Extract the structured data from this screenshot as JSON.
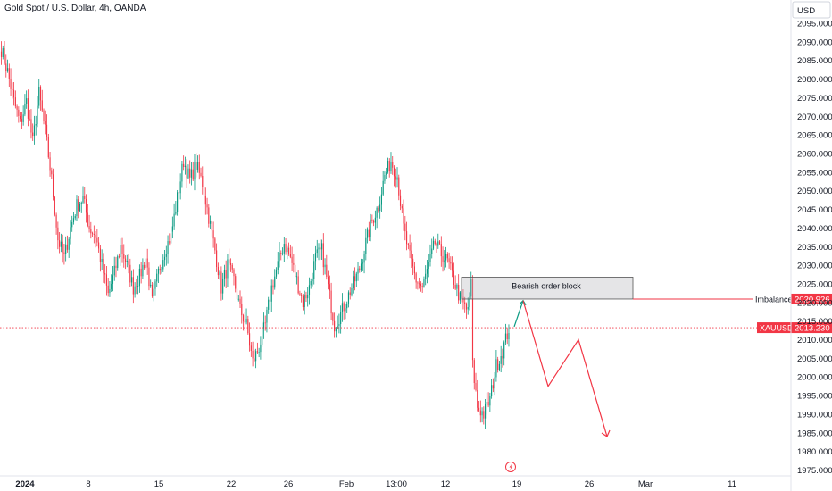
{
  "header": {
    "title": "Gold Spot / U.S. Dollar, 4h, OANDA"
  },
  "chart_data": {
    "type": "candlestick",
    "symbol": "XAUUSD",
    "currency_label": "USD",
    "y_ticks": [
      "2095.000",
      "2090.000",
      "2085.000",
      "2080.000",
      "2075.000",
      "2070.000",
      "2065.000",
      "2060.000",
      "2055.000",
      "2050.000",
      "2045.000",
      "2040.000",
      "2035.000",
      "2030.000",
      "2025.000",
      "2020.000",
      "2015.000",
      "2010.000",
      "2005.000",
      "2000.000",
      "1995.000",
      "1990.000",
      "1985.000",
      "1980.000",
      "1975.000"
    ],
    "ylim": [
      1974,
      2098
    ],
    "x_ticks": [
      {
        "label": "2024",
        "bold": true
      },
      {
        "label": "8"
      },
      {
        "label": "15"
      },
      {
        "label": "22"
      },
      {
        "label": "26"
      },
      {
        "label": "Feb"
      },
      {
        "label": "13:00"
      },
      {
        "label": "12"
      },
      {
        "label": "19"
      },
      {
        "label": "26"
      },
      {
        "label": "Mar"
      },
      {
        "label": "11"
      }
    ],
    "bull_color": "#089981",
    "bear_color": "#f23645",
    "anchors": [
      [
        0,
        2088
      ],
      [
        4,
        2082
      ],
      [
        8,
        2074
      ],
      [
        12,
        2068
      ],
      [
        16,
        2074
      ],
      [
        20,
        2063
      ],
      [
        24,
        2076
      ],
      [
        28,
        2066
      ],
      [
        32,
        2053
      ],
      [
        36,
        2037
      ],
      [
        40,
        2032
      ],
      [
        44,
        2040
      ],
      [
        48,
        2046
      ],
      [
        52,
        2048
      ],
      [
        56,
        2040
      ],
      [
        60,
        2038
      ],
      [
        64,
        2030
      ],
      [
        68,
        2022
      ],
      [
        72,
        2028
      ],
      [
        76,
        2035
      ],
      [
        80,
        2030
      ],
      [
        84,
        2024
      ],
      [
        88,
        2027
      ],
      [
        92,
        2032
      ],
      [
        96,
        2020
      ],
      [
        100,
        2028
      ],
      [
        104,
        2034
      ],
      [
        108,
        2038
      ],
      [
        112,
        2048
      ],
      [
        116,
        2058
      ],
      [
        120,
        2053
      ],
      [
        124,
        2057
      ],
      [
        128,
        2052
      ],
      [
        132,
        2043
      ],
      [
        136,
        2034
      ],
      [
        140,
        2024
      ],
      [
        144,
        2030
      ],
      [
        148,
        2026
      ],
      [
        152,
        2018
      ],
      [
        156,
        2014
      ],
      [
        160,
        2004
      ],
      [
        164,
        2008
      ],
      [
        168,
        2014
      ],
      [
        172,
        2024
      ],
      [
        176,
        2030
      ],
      [
        180,
        2036
      ],
      [
        184,
        2032
      ],
      [
        188,
        2026
      ],
      [
        192,
        2020
      ],
      [
        196,
        2024
      ],
      [
        200,
        2032
      ],
      [
        204,
        2034
      ],
      [
        208,
        2024
      ],
      [
        212,
        2014
      ],
      [
        216,
        2017
      ],
      [
        220,
        2021
      ],
      [
        224,
        2025
      ],
      [
        228,
        2029
      ],
      [
        232,
        2036
      ],
      [
        236,
        2042
      ],
      [
        240,
        2046
      ],
      [
        244,
        2054
      ],
      [
        248,
        2058
      ],
      [
        252,
        2054
      ],
      [
        256,
        2040
      ],
      [
        260,
        2032
      ],
      [
        264,
        2026
      ],
      [
        268,
        2024
      ],
      [
        272,
        2030
      ],
      [
        276,
        2036
      ],
      [
        280,
        2033
      ],
      [
        284,
        2031
      ],
      [
        288,
        2026
      ],
      [
        292,
        2021
      ],
      [
        296,
        2018
      ],
      [
        298,
        2020
      ],
      [
        299,
        2026
      ],
      [
        300,
        2003
      ],
      [
        303,
        1992
      ],
      [
        307,
        1990
      ],
      [
        311,
        1994
      ],
      [
        315,
        2003
      ],
      [
        319,
        2007
      ],
      [
        323,
        2013
      ]
    ],
    "annotations": {
      "order_block_label": "Bearish order block",
      "imbalance_label": "Imbalance",
      "imbalance_value": "2020.926",
      "imbalance_price": 2020.926,
      "order_block_range": [
        2020.926,
        2026.8
      ],
      "current_symbol_label": "XAUUSD",
      "current_value": "2013.230",
      "current_price": 2013.23,
      "projection_path": [
        [
          2013.5
        ],
        [
          2020.5
        ],
        [
          1997.5
        ],
        [
          2010.0
        ],
        [
          1984.0
        ]
      ]
    }
  }
}
